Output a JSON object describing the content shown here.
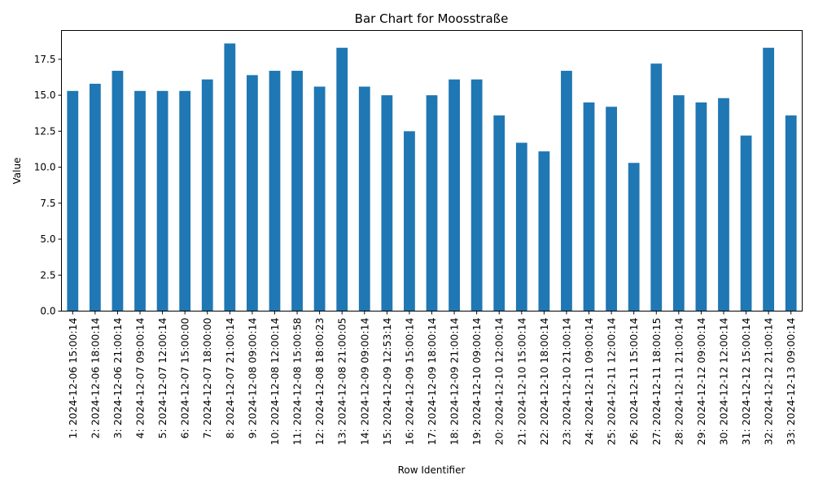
{
  "chart_data": {
    "type": "bar",
    "title": "Bar Chart for Moosstraße",
    "xlabel": "Row Identifier",
    "ylabel": "Value",
    "ylim": [
      0,
      19.5
    ],
    "yticks": [
      "0.0",
      "2.5",
      "5.0",
      "7.5",
      "10.0",
      "12.5",
      "15.0",
      "17.5"
    ],
    "bar_color": "#1f77b4",
    "grid": false,
    "legend": "none",
    "categories": [
      "1: 2024-12-06 15:00:14",
      "2: 2024-12-06 18:00:14",
      "3: 2024-12-06 21:00:14",
      "4: 2024-12-07 09:00:14",
      "5: 2024-12-07 12:00:14",
      "6: 2024-12-07 15:00:00",
      "7: 2024-12-07 18:00:00",
      "8: 2024-12-07 21:00:14",
      "9: 2024-12-08 09:00:14",
      "10: 2024-12-08 12:00:14",
      "11: 2024-12-08 15:00:58",
      "12: 2024-12-08 18:00:23",
      "13: 2024-12-08 21:00:05",
      "14: 2024-12-09 09:00:14",
      "15: 2024-12-09 12:53:14",
      "16: 2024-12-09 15:00:14",
      "17: 2024-12-09 18:00:14",
      "18: 2024-12-09 21:00:14",
      "19: 2024-12-10 09:00:14",
      "20: 2024-12-10 12:00:14",
      "21: 2024-12-10 15:00:14",
      "22: 2024-12-10 18:00:14",
      "23: 2024-12-10 21:00:14",
      "24: 2024-12-11 09:00:14",
      "25: 2024-12-11 12:00:14",
      "26: 2024-12-11 15:00:14",
      "27: 2024-12-11 18:00:15",
      "28: 2024-12-11 21:00:14",
      "29: 2024-12-12 09:00:14",
      "30: 2024-12-12 12:00:14",
      "31: 2024-12-12 15:00:14",
      "32: 2024-12-12 21:00:14",
      "33: 2024-12-13 09:00:14"
    ],
    "values": [
      15.3,
      15.8,
      16.7,
      15.3,
      15.3,
      15.3,
      16.1,
      18.6,
      16.4,
      16.7,
      16.7,
      15.6,
      18.3,
      15.6,
      15.0,
      12.5,
      15.0,
      16.1,
      16.1,
      13.6,
      11.7,
      11.1,
      16.7,
      14.5,
      14.2,
      10.3,
      17.2,
      15.0,
      14.5,
      14.8,
      12.2,
      18.3,
      13.6
    ]
  }
}
